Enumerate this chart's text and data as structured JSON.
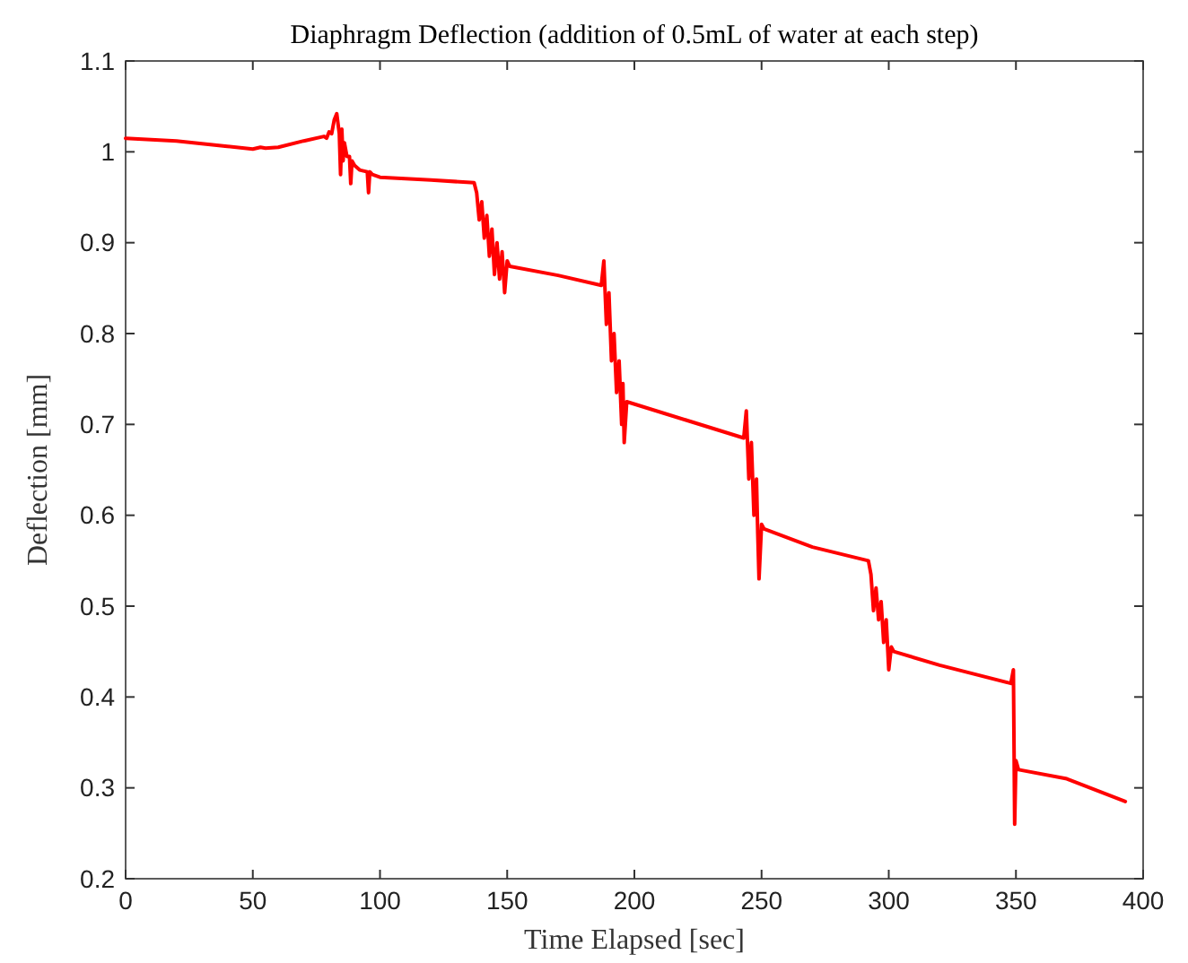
{
  "chart_data": {
    "type": "line",
    "title": "Diaphragm Deflection (addition of 0.5mL of water at each step)",
    "xlabel": "Time Elapsed [sec]",
    "ylabel": "Deflection [mm]",
    "xlim": [
      0,
      400
    ],
    "ylim": [
      0.2,
      1.1
    ],
    "xticks": [
      0,
      50,
      100,
      150,
      200,
      250,
      300,
      350,
      400
    ],
    "yticks": [
      0.2,
      0.3,
      0.4,
      0.5,
      0.6,
      0.7,
      0.8,
      0.9,
      1,
      1.1
    ],
    "grid": false,
    "line_style": "solid",
    "marker": "none",
    "series": [
      {
        "color": "#ff0000",
        "x": [
          0,
          20,
          40,
          50,
          53,
          55,
          60,
          70,
          78,
          79,
          80,
          81,
          82,
          83,
          84,
          84.5,
          85,
          85.5,
          86,
          87,
          88,
          88.5,
          89,
          90,
          92,
          95,
          95.5,
          96,
          97,
          100,
          120,
          137,
          138,
          139,
          140,
          141,
          142,
          143,
          144,
          145,
          146,
          147,
          148,
          149,
          150,
          151,
          170,
          187,
          188,
          189,
          190,
          191,
          192,
          193,
          194,
          195,
          195.5,
          196,
          197,
          220,
          243,
          244,
          245,
          246,
          247,
          248,
          248.5,
          249,
          250,
          251,
          270,
          292,
          293,
          294,
          295,
          296,
          297,
          298,
          299,
          300,
          301,
          302,
          320,
          348,
          349,
          349.5,
          350,
          351,
          370,
          393
        ],
        "values": [
          1.015,
          1.012,
          1.006,
          1.003,
          1.005,
          1.004,
          1.005,
          1.012,
          1.017,
          1.015,
          1.022,
          1.02,
          1.035,
          1.042,
          1.02,
          0.975,
          1.025,
          0.99,
          1.01,
          0.995,
          0.995,
          0.965,
          0.99,
          0.985,
          0.98,
          0.978,
          0.955,
          0.978,
          0.975,
          0.972,
          0.969,
          0.966,
          0.955,
          0.925,
          0.945,
          0.905,
          0.93,
          0.885,
          0.915,
          0.865,
          0.9,
          0.86,
          0.89,
          0.845,
          0.88,
          0.874,
          0.864,
          0.853,
          0.88,
          0.81,
          0.845,
          0.77,
          0.8,
          0.735,
          0.77,
          0.7,
          0.745,
          0.68,
          0.725,
          0.705,
          0.685,
          0.715,
          0.64,
          0.68,
          0.6,
          0.64,
          0.58,
          0.53,
          0.59,
          0.585,
          0.565,
          0.55,
          0.535,
          0.495,
          0.52,
          0.485,
          0.505,
          0.46,
          0.485,
          0.43,
          0.455,
          0.45,
          0.435,
          0.415,
          0.43,
          0.26,
          0.33,
          0.32,
          0.31,
          0.285
        ]
      }
    ]
  }
}
